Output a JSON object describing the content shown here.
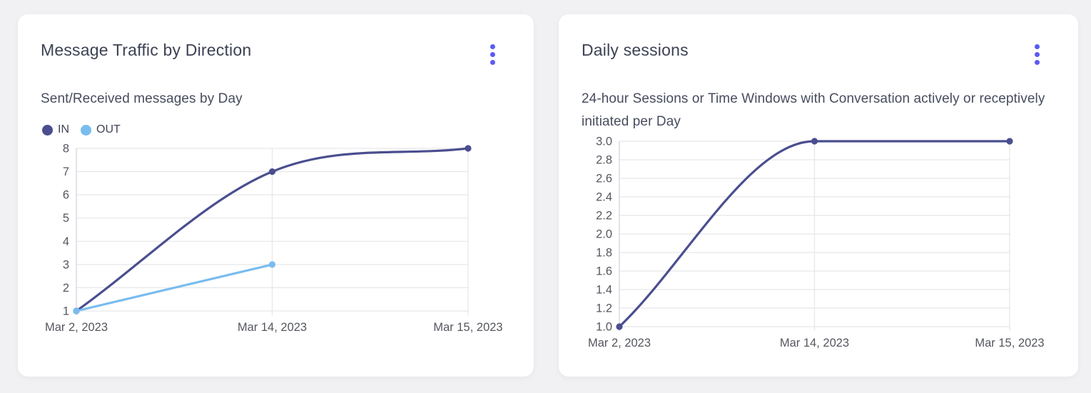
{
  "colors": {
    "accent": "#5a5bf2",
    "series_in": "#4a4e8f",
    "series_out": "#79bcee",
    "grid": "#e7e7ea",
    "axis": "#d2d3d9",
    "tick_text": "#54575e"
  },
  "cards": [
    {
      "title": "Message Traffic by Direction",
      "subtitle": "Sent/Received messages by Day",
      "menu_icon": "kebab-menu"
    },
    {
      "title": "Daily sessions",
      "subtitle": "24-hour Sessions or Time Windows with Conversation actively or receptively initiated per Day",
      "menu_icon": "kebab-menu"
    }
  ],
  "chart_data": [
    {
      "type": "line",
      "title": "Message Traffic by Direction",
      "subtitle": "Sent/Received messages by Day",
      "categories": [
        "Mar 2, 2023",
        "Mar 14, 2023",
        "Mar 15, 2023"
      ],
      "series": [
        {
          "name": "IN",
          "color": "#4a4e8f",
          "values": [
            1,
            7,
            8
          ]
        },
        {
          "name": "OUT",
          "color": "#79bcee",
          "values": [
            1,
            3,
            null
          ]
        }
      ],
      "ylim": [
        1,
        8
      ],
      "y_ticks": [
        "8",
        "7",
        "6",
        "5",
        "4",
        "3",
        "2",
        "1"
      ],
      "grid": true,
      "legend_position": "top-left",
      "curve": "monotone"
    },
    {
      "type": "line",
      "title": "Daily sessions",
      "subtitle": "24-hour Sessions or Time Windows with Conversation actively or receptively initiated per Day",
      "categories": [
        "Mar 2, 2023",
        "Mar 14, 2023",
        "Mar 15, 2023"
      ],
      "series": [
        {
          "name": "Daily sessions",
          "color": "#4a4e8f",
          "values": [
            1.0,
            3.0,
            3.0
          ]
        }
      ],
      "ylim": [
        1.0,
        3.0
      ],
      "y_ticks": [
        "3.0",
        "2.8",
        "2.6",
        "2.4",
        "2.2",
        "2.0",
        "1.8",
        "1.6",
        "1.4",
        "1.2",
        "1.0"
      ],
      "grid": true,
      "legend_position": "none",
      "curve": "monotone"
    }
  ]
}
